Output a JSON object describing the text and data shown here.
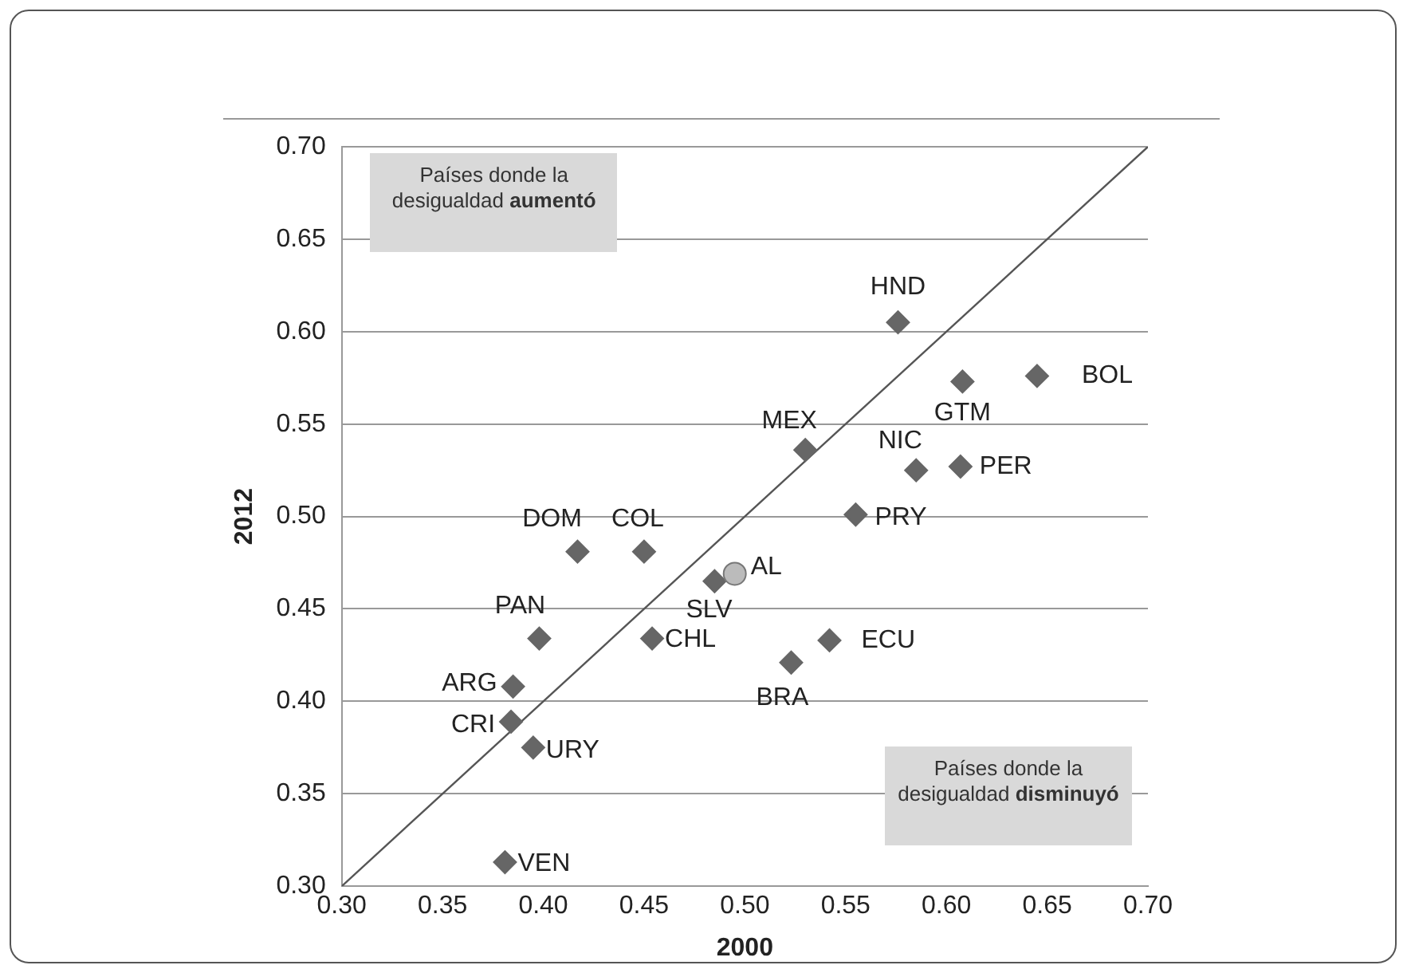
{
  "chart_data": {
    "type": "scatter",
    "xlabel": "2000",
    "ylabel": "2012",
    "xlim": [
      0.3,
      0.7
    ],
    "ylim": [
      0.3,
      0.7
    ],
    "xticks": [
      {
        "value": 0.3,
        "label": "0.30"
      },
      {
        "value": 0.35,
        "label": "0.35"
      },
      {
        "value": 0.4,
        "label": "0.40"
      },
      {
        "value": 0.45,
        "label": "0.45"
      },
      {
        "value": 0.5,
        "label": "0.50"
      },
      {
        "value": 0.55,
        "label": "0.55"
      },
      {
        "value": 0.6,
        "label": "0.60"
      },
      {
        "value": 0.65,
        "label": "0.65"
      },
      {
        "value": 0.7,
        "label": "0.70"
      }
    ],
    "yticks": [
      {
        "value": 0.3,
        "label": "0.30"
      },
      {
        "value": 0.35,
        "label": "0.35"
      },
      {
        "value": 0.4,
        "label": "0.40"
      },
      {
        "value": 0.45,
        "label": "0.45"
      },
      {
        "value": 0.5,
        "label": "0.50"
      },
      {
        "value": 0.55,
        "label": "0.55"
      },
      {
        "value": 0.6,
        "label": "0.60"
      },
      {
        "value": 0.65,
        "label": "0.65"
      },
      {
        "value": 0.7,
        "label": "0.70"
      }
    ],
    "grid": "y",
    "legend": false,
    "marker": "diamond",
    "annotations": [
      "Países donde la desigualdad aumentó",
      "Países donde la desigualdad disminuyó"
    ],
    "series": [
      {
        "type": "line",
        "color": "#555555",
        "marker": "none",
        "x": [
          0.3,
          0.7
        ],
        "values": [
          0.3,
          0.7
        ]
      },
      {
        "name": "HND",
        "color": "#666666",
        "x": [
          0.576
        ],
        "values": [
          0.605
        ]
      },
      {
        "name": "GTM",
        "color": "#666666",
        "x": [
          0.608
        ],
        "values": [
          0.573
        ]
      },
      {
        "name": "BOL",
        "color": "#666666",
        "x": [
          0.645
        ],
        "values": [
          0.576
        ]
      },
      {
        "name": "MEX",
        "color": "#666666",
        "x": [
          0.53
        ],
        "values": [
          0.536
        ]
      },
      {
        "name": "NIC",
        "color": "#666666",
        "x": [
          0.585
        ],
        "values": [
          0.525
        ]
      },
      {
        "name": "PER",
        "color": "#666666",
        "x": [
          0.607
        ],
        "values": [
          0.527
        ]
      },
      {
        "name": "PRY",
        "color": "#666666",
        "x": [
          0.555
        ],
        "values": [
          0.501
        ]
      },
      {
        "name": "AL",
        "color": "#bbbbbb",
        "marker": "circle",
        "x": [
          0.495
        ],
        "values": [
          0.469
        ]
      },
      {
        "name": "SLV",
        "color": "#666666",
        "x": [
          0.485
        ],
        "values": [
          0.465
        ]
      },
      {
        "name": "ECU",
        "color": "#666666",
        "x": [
          0.542
        ],
        "values": [
          0.433
        ]
      },
      {
        "name": "BRA",
        "color": "#666666",
        "x": [
          0.523
        ],
        "values": [
          0.421
        ]
      },
      {
        "name": "DOM",
        "color": "#666666",
        "x": [
          0.417
        ],
        "values": [
          0.481
        ]
      },
      {
        "name": "COL",
        "color": "#666666",
        "x": [
          0.45
        ],
        "values": [
          0.481
        ]
      },
      {
        "name": "PAN",
        "color": "#666666",
        "x": [
          0.398
        ],
        "values": [
          0.434
        ]
      },
      {
        "name": "CHL",
        "color": "#666666",
        "x": [
          0.454
        ],
        "values": [
          0.434
        ]
      },
      {
        "name": "ARG",
        "color": "#666666",
        "x": [
          0.385
        ],
        "values": [
          0.408
        ]
      },
      {
        "name": "CRI",
        "color": "#666666",
        "x": [
          0.384
        ],
        "values": [
          0.389
        ]
      },
      {
        "name": "URY",
        "color": "#666666",
        "x": [
          0.395
        ],
        "values": [
          0.375
        ]
      },
      {
        "name": "VEN",
        "color": "#666666",
        "x": [
          0.381
        ],
        "values": [
          0.313
        ]
      }
    ]
  }
}
